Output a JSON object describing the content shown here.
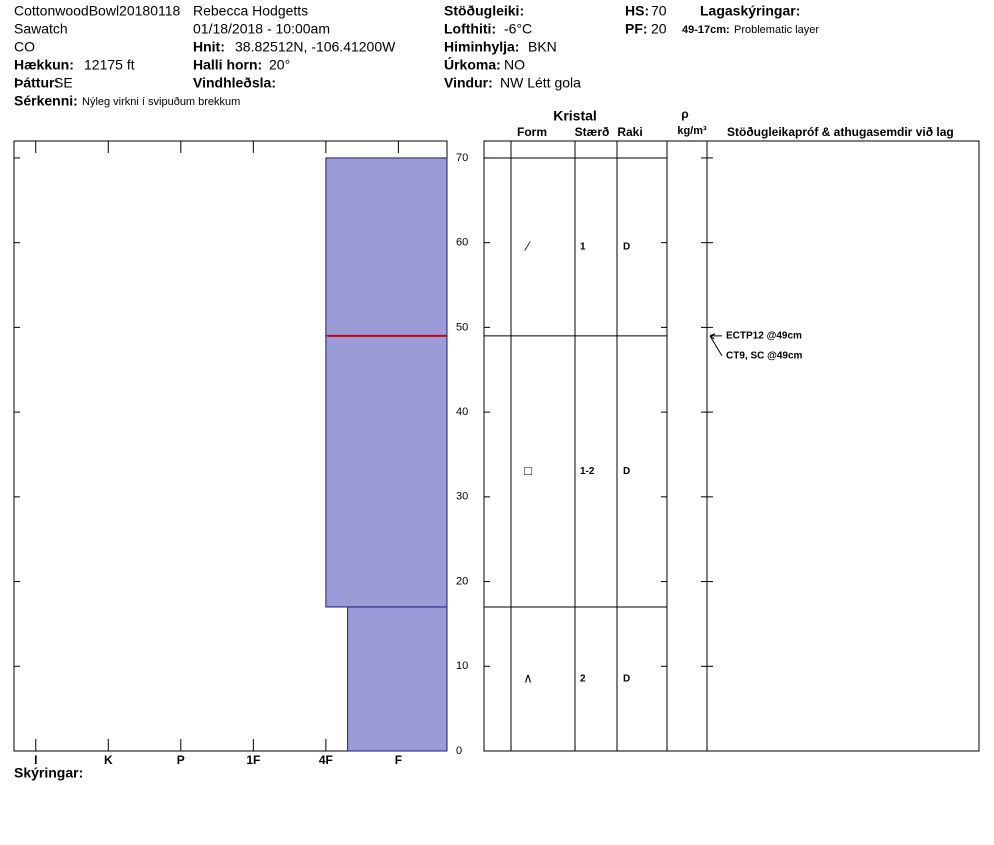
{
  "header": {
    "fields": [
      {
        "value": "CottonwoodBowl20180118"
      },
      {
        "value": "Sawatch"
      },
      {
        "value": "CO"
      },
      {
        "label": "Hækkun:",
        "value": "12175 ft"
      },
      {
        "label": "Þáttur:",
        "value": "SE"
      },
      {
        "label": "Sérkenni:",
        "value": "Nýleg virkni í svipuðum brekkum"
      },
      {
        "value": "Rebecca Hodgetts"
      },
      {
        "value": "01/18/2018 - 10:00am"
      },
      {
        "label": "Hnit:",
        "value": "38.82512N, -106.41200W"
      },
      {
        "label": "Halli horn:",
        "value": "20°"
      },
      {
        "label": "Vindhleðsla:"
      },
      {
        "label": "Stöðugleiki:"
      },
      {
        "label": "Lofthiti:",
        "value": "-6°C"
      },
      {
        "label": "Himinhylja:",
        "value": "BKN"
      },
      {
        "label": "Úrkoma:",
        "value": "NO"
      },
      {
        "label": "Vindur:",
        "value": "NW Létt gola"
      },
      {
        "label": "HS:",
        "value": "70"
      },
      {
        "label": "PF:",
        "value": "20"
      },
      {
        "label": "Lagaskýringar:"
      },
      {
        "label": "49-17cm:",
        "value": "Problematic layer"
      }
    ]
  },
  "table_headers": {
    "crystal": "Kristal",
    "form": "Form",
    "size": "Stærð",
    "moisture": "Raki",
    "rho": "ρ",
    "density_unit": "kg/m³",
    "tests": "Stöðugleikapróf & athugasemdir við lag"
  },
  "footer": {
    "notes": "Skýringar:"
  },
  "chart_data": {
    "type": "profile",
    "ylim": [
      0,
      72
    ],
    "yticks": [
      0,
      10,
      20,
      30,
      40,
      50,
      60,
      70
    ],
    "xlim": [
      6.3,
      0.33
    ],
    "xticks": [
      {
        "value": 6,
        "label": "I"
      },
      {
        "value": 5,
        "label": "K"
      },
      {
        "value": 4,
        "label": "P"
      },
      {
        "value": 3,
        "label": "1F"
      },
      {
        "value": 2,
        "label": "4F"
      },
      {
        "value": 1,
        "label": "F"
      }
    ],
    "color": "#9b9bd7",
    "layers": [
      {
        "top": 70,
        "bottom": 49,
        "hardness": 2,
        "form": "⁄",
        "size": "1",
        "moisture": "D"
      },
      {
        "top": 49,
        "bottom": 17,
        "hardness": 2,
        "form": "□",
        "size": "1-2",
        "moisture": "D"
      },
      {
        "top": 17,
        "bottom": 0,
        "hardness": 1.7,
        "form": "∧",
        "size": "2",
        "moisture": "D"
      }
    ],
    "problem_depth": 49,
    "problem_color": "#cc0000",
    "tests": [
      {
        "label": "ECTP12 @49cm",
        "depth": 49
      },
      {
        "label": "CT9, SC @49cm",
        "depth": 49
      }
    ]
  }
}
